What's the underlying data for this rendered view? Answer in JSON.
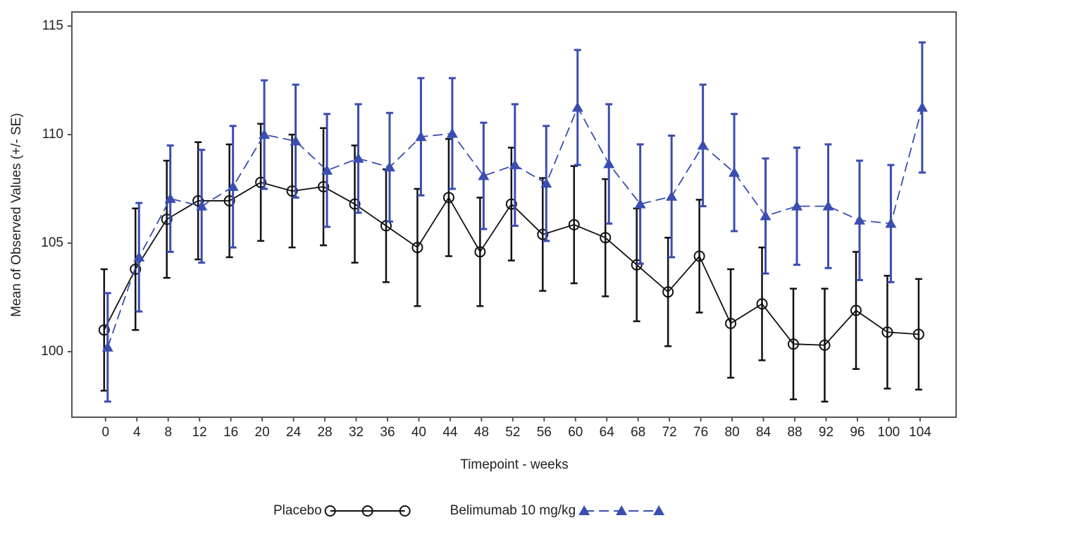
{
  "chart_data": {
    "type": "line",
    "x_label": "Timepoint - weeks",
    "y_label": "Mean of Observed Values (+/- SE)",
    "x": [
      0,
      4,
      8,
      12,
      16,
      20,
      24,
      28,
      32,
      36,
      40,
      44,
      48,
      52,
      56,
      60,
      64,
      68,
      72,
      76,
      80,
      84,
      88,
      92,
      96,
      100,
      104
    ],
    "xlim": [
      -4.3,
      108.6
    ],
    "xticks": [
      0,
      4,
      8,
      12,
      16,
      20,
      24,
      28,
      32,
      36,
      40,
      44,
      48,
      52,
      56,
      60,
      64,
      68,
      72,
      76,
      80,
      84,
      88,
      92,
      96,
      100,
      104
    ],
    "ylim": [
      96.98,
      115.65
    ],
    "yticks": [
      100,
      105,
      110,
      115
    ],
    "grid": false,
    "legend": "bottom",
    "series": [
      {
        "name": "Placebo",
        "color": "#111111",
        "marker": "circle",
        "dash": false,
        "values": [
          101.0,
          103.8,
          106.1,
          106.95,
          106.95,
          107.8,
          107.4,
          107.6,
          106.8,
          105.8,
          104.8,
          107.1,
          104.6,
          106.8,
          105.4,
          105.85,
          105.25,
          104.0,
          102.75,
          104.4,
          101.3,
          102.2,
          100.35,
          100.3,
          101.9,
          100.9,
          100.8
        ],
        "errors": [
          2.8,
          2.8,
          2.7,
          2.7,
          2.6,
          2.7,
          2.6,
          2.7,
          2.7,
          2.6,
          2.7,
          2.7,
          2.5,
          2.6,
          2.6,
          2.7,
          2.7,
          2.6,
          2.5,
          2.6,
          2.5,
          2.6,
          2.55,
          2.6,
          2.7,
          2.6,
          2.55
        ]
      },
      {
        "name": "Belimumab 10 mg/kg",
        "color": "#3a4db0",
        "marker": "triangle",
        "dash": true,
        "values": [
          100.2,
          104.35,
          107.05,
          106.7,
          107.6,
          110.0,
          109.7,
          108.35,
          108.9,
          108.5,
          109.9,
          110.05,
          108.1,
          108.6,
          107.75,
          111.25,
          108.65,
          106.8,
          107.15,
          109.5,
          108.25,
          106.25,
          106.7,
          106.7,
          106.05,
          105.9,
          111.25
        ],
        "errors": [
          2.5,
          2.5,
          2.45,
          2.6,
          2.8,
          2.5,
          2.6,
          2.6,
          2.5,
          2.5,
          2.7,
          2.55,
          2.45,
          2.8,
          2.65,
          2.65,
          2.75,
          2.75,
          2.8,
          2.8,
          2.7,
          2.65,
          2.7,
          2.85,
          2.75,
          2.7,
          3.0
        ]
      }
    ]
  }
}
